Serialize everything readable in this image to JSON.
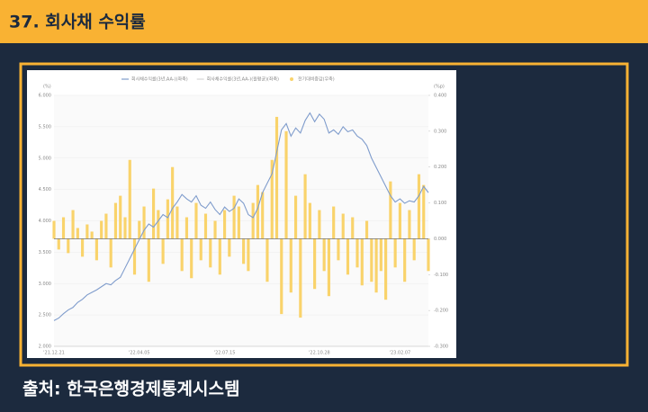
{
  "header": {
    "title": "37. 회사채 수익률"
  },
  "chart_data": {
    "type": "line-bar",
    "y_unit": "(%)",
    "y2_unit": "(%p)",
    "categories": [
      "'21.12.21",
      null,
      null,
      null,
      null,
      null,
      null,
      null,
      null,
      null,
      null,
      null,
      null,
      null,
      null,
      null,
      null,
      null,
      "'22.04.05",
      null,
      null,
      null,
      null,
      null,
      null,
      null,
      null,
      null,
      null,
      null,
      null,
      null,
      null,
      null,
      null,
      null,
      "'22.07.15",
      null,
      null,
      null,
      null,
      null,
      null,
      null,
      null,
      null,
      null,
      null,
      null,
      null,
      null,
      null,
      null,
      null,
      null,
      null,
      "'22.10.28",
      null,
      null,
      null,
      null,
      null,
      null,
      null,
      null,
      null,
      null,
      null,
      null,
      null,
      null,
      null,
      null,
      "'23.02.07",
      null,
      null,
      null,
      null,
      null,
      null
    ],
    "series": [
      {
        "name": "회사채수익률(3년,AA-)(좌축)",
        "type": "line",
        "color": "#7f9ccc",
        "values": [
          2.41,
          2.45,
          2.52,
          2.58,
          2.62,
          2.7,
          2.75,
          2.82,
          2.86,
          2.9,
          2.95,
          3.0,
          2.98,
          3.05,
          3.1,
          3.25,
          3.4,
          3.55,
          3.7,
          3.85,
          3.95,
          3.9,
          4.0,
          4.1,
          4.05,
          4.2,
          4.3,
          4.42,
          4.35,
          4.3,
          4.4,
          4.25,
          4.2,
          4.3,
          4.18,
          4.1,
          4.22,
          4.15,
          4.2,
          4.35,
          4.28,
          4.1,
          4.05,
          4.2,
          4.45,
          4.6,
          4.75,
          5.1,
          5.45,
          5.55,
          5.35,
          5.48,
          5.4,
          5.6,
          5.72,
          5.58,
          5.7,
          5.62,
          5.4,
          5.45,
          5.38,
          5.5,
          5.42,
          5.45,
          5.35,
          5.3,
          5.2,
          5.0,
          4.85,
          4.7,
          4.55,
          4.4,
          4.3,
          4.35,
          4.28,
          4.32,
          4.3,
          4.4,
          4.55,
          4.45
        ]
      },
      {
        "name": "회사채수익률(3년,AA-)(월평균)(좌축)",
        "type": "line",
        "color": "#d6d6d6",
        "values": [
          null,
          null,
          null,
          null,
          null,
          null,
          null,
          null,
          null,
          null,
          null,
          null,
          null,
          null,
          null,
          null,
          null,
          null,
          null,
          null,
          null,
          null,
          null,
          null,
          null,
          null,
          null,
          null,
          null,
          null,
          null,
          null,
          null,
          null,
          null,
          null,
          null,
          null,
          null,
          null,
          null,
          null,
          null,
          null,
          null,
          null,
          null,
          null,
          null,
          null,
          null,
          null,
          null,
          null,
          null,
          null,
          null,
          null,
          null,
          null,
          null,
          null,
          null,
          null,
          null,
          null,
          null,
          null,
          null,
          null,
          null,
          null,
          null,
          null,
          null,
          null,
          null,
          null,
          null,
          null
        ]
      },
      {
        "name": "전기대비증감(우축)",
        "type": "bar",
        "axis": "y2",
        "color": "#f9d36b",
        "values": [
          0.05,
          -0.03,
          0.06,
          -0.04,
          0.08,
          0.03,
          -0.05,
          0.04,
          0.02,
          -0.06,
          0.05,
          0.07,
          -0.08,
          0.1,
          0.12,
          0.06,
          0.22,
          -0.1,
          0.05,
          0.09,
          -0.12,
          0.14,
          0.08,
          -0.07,
          0.11,
          0.2,
          0.09,
          -0.09,
          0.06,
          -0.11,
          0.1,
          -0.06,
          0.07,
          -0.08,
          0.05,
          -0.1,
          0.08,
          -0.05,
          0.12,
          0.09,
          -0.07,
          -0.09,
          0.1,
          0.15,
          0.13,
          -0.12,
          0.22,
          0.34,
          -0.21,
          0.3,
          -0.15,
          0.12,
          -0.22,
          0.18,
          0.1,
          -0.14,
          0.08,
          -0.09,
          -0.16,
          0.09,
          -0.06,
          0.07,
          -0.1,
          0.06,
          -0.08,
          -0.13,
          0.05,
          -0.12,
          -0.15,
          -0.09,
          -0.17,
          0.16,
          -0.08,
          0.1,
          -0.12,
          0.08,
          -0.06,
          0.18,
          0.15,
          -0.09
        ]
      }
    ],
    "ylim": [
      2,
      6
    ],
    "yticks": [
      {
        "value": 2,
        "label": "2.000"
      },
      {
        "value": 2.5,
        "label": "2.500"
      },
      {
        "value": 3,
        "label": "3.000"
      },
      {
        "value": 3.5,
        "label": "3.500"
      },
      {
        "value": 4,
        "label": "4.000"
      },
      {
        "value": 4.5,
        "label": "4.500"
      },
      {
        "value": 5,
        "label": "5.000"
      },
      {
        "value": 5.5,
        "label": "5.500"
      },
      {
        "value": 6,
        "label": "6.000"
      }
    ],
    "y2lim": [
      -0.3,
      0.4
    ],
    "y2ticks": [
      {
        "value": -0.3,
        "label": "-0.300"
      },
      {
        "value": -0.2,
        "label": "-0.200"
      },
      {
        "value": -0.1,
        "label": "-0.100"
      },
      {
        "value": 0,
        "label": "0.000"
      },
      {
        "value": 0.1,
        "label": "0.100"
      },
      {
        "value": 0.2,
        "label": "0.200"
      },
      {
        "value": 0.3,
        "label": "0.300"
      },
      {
        "value": 0.4,
        "label": "0.400"
      }
    ],
    "grid": true
  },
  "footer": {
    "source": "출처: 한국은행경제통계시스템"
  }
}
